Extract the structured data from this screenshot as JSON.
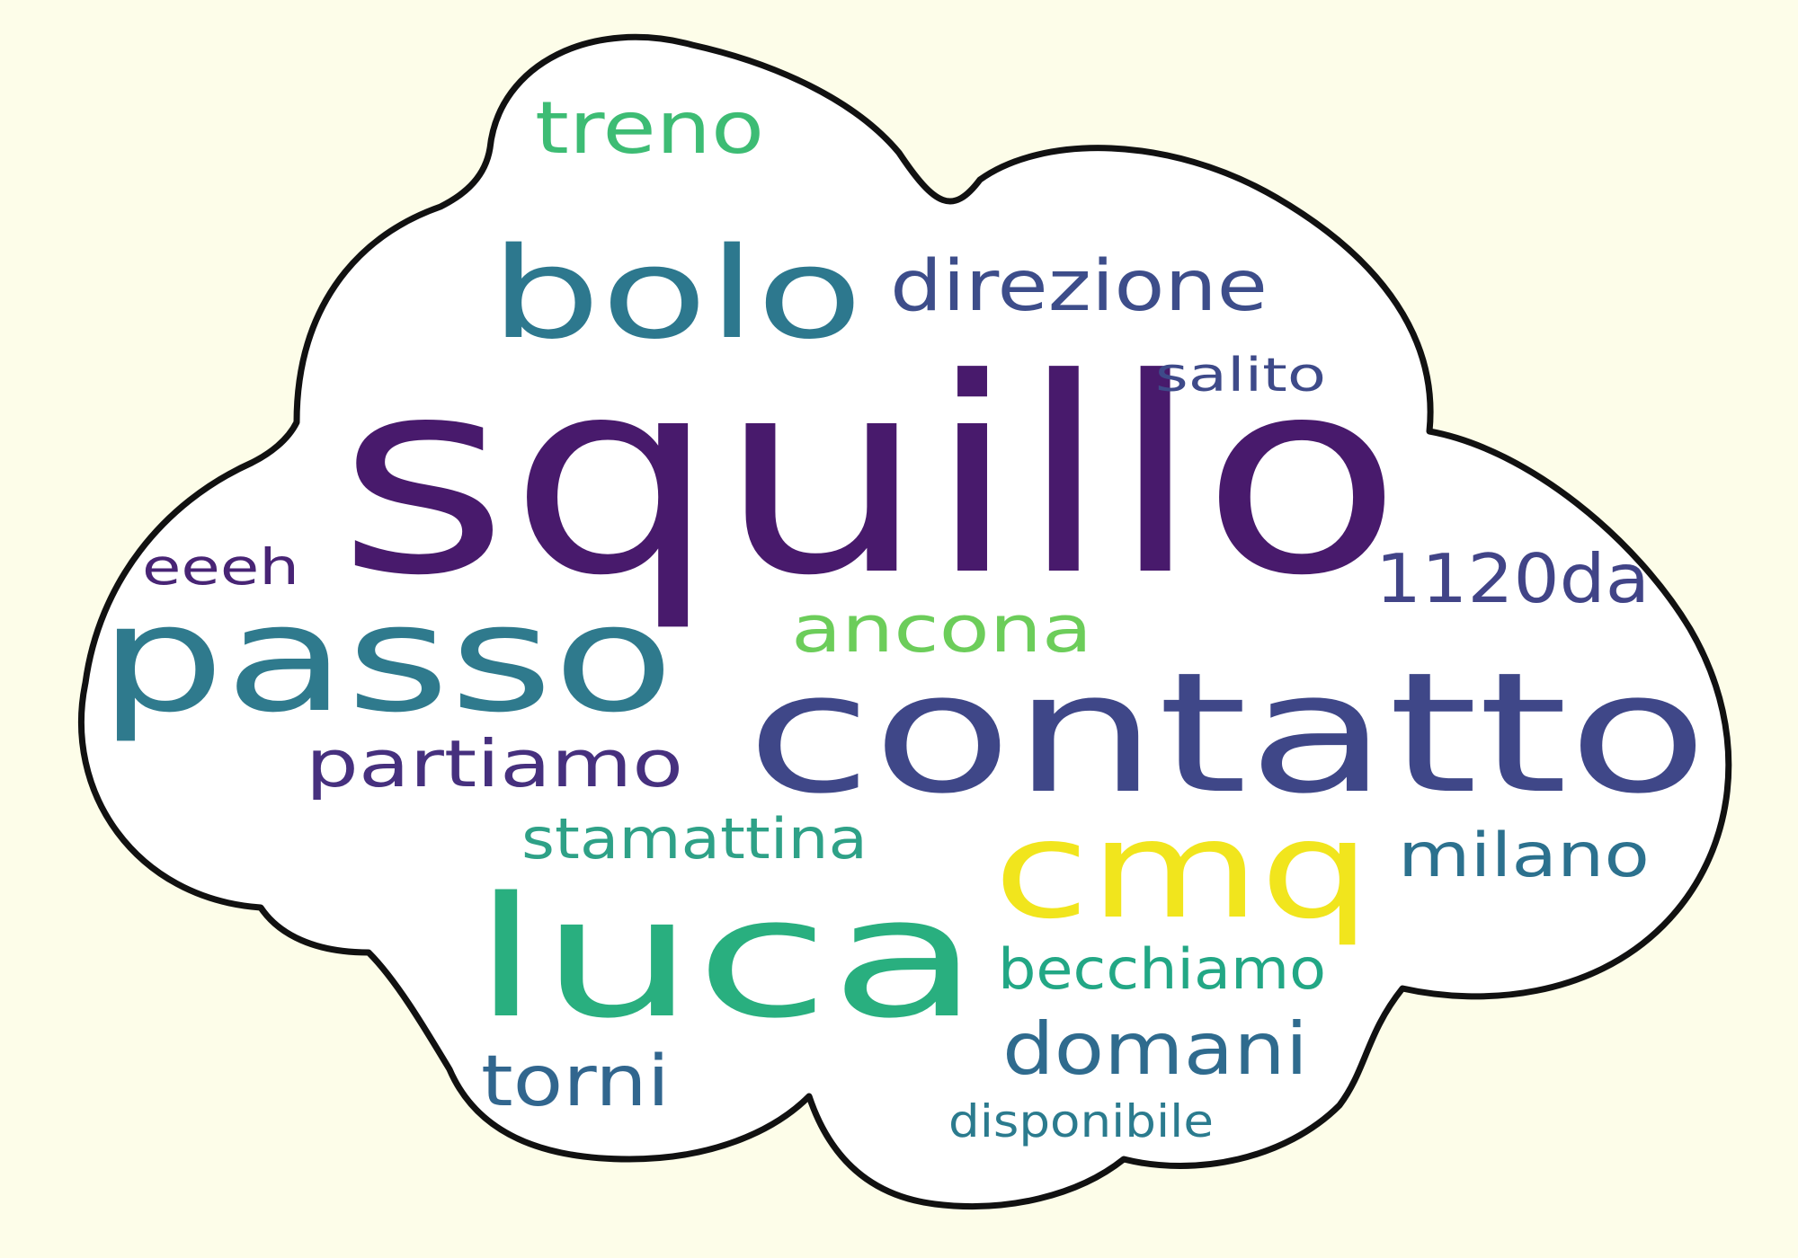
{
  "background_color": "#fdfde9",
  "cloud": {
    "fill": "#ffffff",
    "outline_color": "#111111"
  },
  "words": [
    {
      "key": "squillo",
      "text": "squillo",
      "color": "#481a6c"
    },
    {
      "key": "contatto",
      "text": "contatto",
      "color": "#3f4788"
    },
    {
      "key": "passo",
      "text": "passo",
      "color": "#2f7a8d"
    },
    {
      "key": "luca",
      "text": "luca",
      "color": "#29af7f"
    },
    {
      "key": "cmq",
      "text": "cmq",
      "color": "#f1e51d"
    },
    {
      "key": "bolo",
      "text": "bolo",
      "color": "#2d788e"
    },
    {
      "key": "direzione",
      "text": "direzione",
      "color": "#3d4d8a"
    },
    {
      "key": "treno",
      "text": "treno",
      "color": "#3dbc74"
    },
    {
      "key": "salito",
      "text": "salito",
      "color": "#3e4a89"
    },
    {
      "key": "eeeh",
      "text": "eeeh",
      "color": "#482475"
    },
    {
      "key": "1120da",
      "text": "1120da",
      "color": "#414487"
    },
    {
      "key": "ancona",
      "text": "ancona",
      "color": "#6ccd5a"
    },
    {
      "key": "partiamo",
      "text": "partiamo",
      "color": "#46307e"
    },
    {
      "key": "stamattina",
      "text": "stamattina",
      "color": "#2ea187"
    },
    {
      "key": "milano",
      "text": "milano",
      "color": "#2c718e"
    },
    {
      "key": "becchiamo",
      "text": "becchiamo",
      "color": "#22a785"
    },
    {
      "key": "domani",
      "text": "domani",
      "color": "#2f6b8e"
    },
    {
      "key": "torni",
      "text": "torni",
      "color": "#31668e"
    },
    {
      "key": "disponibile",
      "text": "disponibile",
      "color": "#2b7b8e"
    }
  ]
}
